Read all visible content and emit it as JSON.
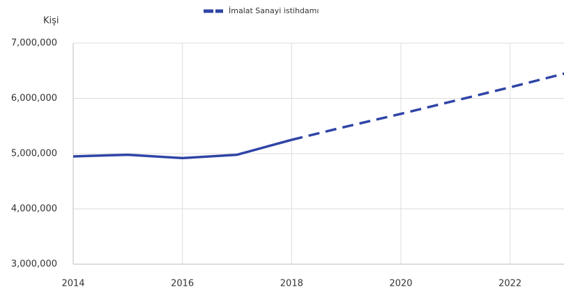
{
  "chart_data": {
    "type": "line",
    "y_axis_label": "Kişi",
    "x": [
      2014,
      2015,
      2016,
      2017,
      2018,
      2019,
      2020,
      2021,
      2022,
      2023
    ],
    "series": [
      {
        "name": "İmalat Sanayi istihdamı",
        "color": "#2f45a6",
        "values": [
          4950000,
          4980000,
          4920000,
          4980000,
          5250000,
          5490000,
          5720000,
          5960000,
          6200000,
          6450000
        ]
      }
    ],
    "dashed_from": 2018,
    "xlim": [
      2014,
      2023
    ],
    "xticks": [
      2014,
      2016,
      2018,
      2020,
      2022
    ],
    "ylim": [
      3000000,
      7000000
    ],
    "yticks": [
      {
        "value": 3000000,
        "label": "3,000,000"
      },
      {
        "value": 4000000,
        "label": "4,000,000"
      },
      {
        "value": 5000000,
        "label": "5,000,000"
      },
      {
        "value": 6000000,
        "label": "6,000,000"
      },
      {
        "value": 7000000,
        "label": "7,000,000"
      }
    ],
    "grid": true,
    "legend": "top"
  }
}
